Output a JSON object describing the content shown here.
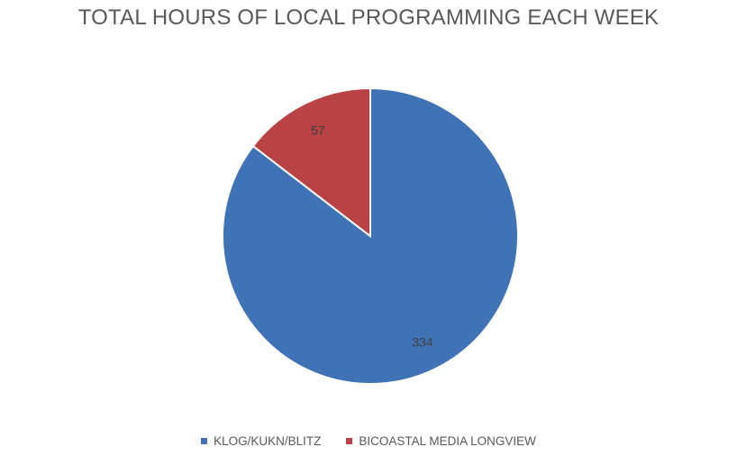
{
  "chart_data": {
    "type": "pie",
    "title": "TOTAL HOURS OF LOCAL PROGRAMMING EACH WEEK",
    "categories": [
      "KLOG/KUKN/BLITZ",
      "BICOASTAL MEDIA LONGVIEW"
    ],
    "values": [
      334,
      57
    ],
    "colors": [
      "#3f73b5",
      "#b94244"
    ],
    "legend_position": "bottom",
    "data_labels": [
      "334",
      "57"
    ]
  }
}
